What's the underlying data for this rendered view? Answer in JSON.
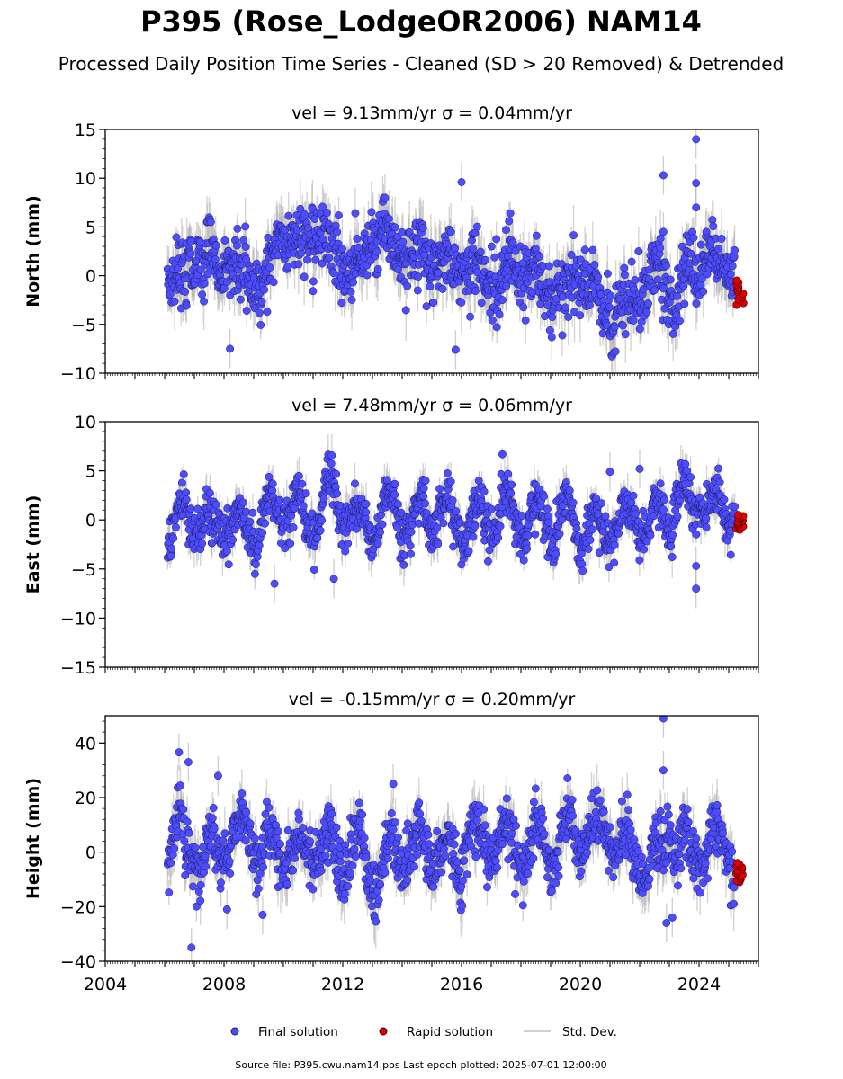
{
  "header": {
    "title": "P395 (Rose_LodgeOR2006) NAM14",
    "subtitle": "Processed Daily Position Time Series - Cleaned (SD > 20 Removed) & Detrended"
  },
  "legend": {
    "final_label": "Final solution",
    "rapid_label": "Rapid solution",
    "std_label": "Std. Dev."
  },
  "footer": {
    "source": "Source file: P395.cwu.nam14.pos  Last epoch plotted: 2025-07-01 12:00:00"
  },
  "colors": {
    "final": "#4d4dff",
    "final_edge": "#1a1a55",
    "rapid": "#e00000",
    "std": "#b0b0b0"
  },
  "chart_data": [
    {
      "type": "scatter",
      "title": "vel = 9.13mm/yr   σ = 0.04mm/yr",
      "ylabel": "North (mm)",
      "xlim": [
        2004.0,
        2026.0
      ],
      "ylim": [
        -10,
        15
      ],
      "yticks": [
        -10,
        -5,
        0,
        5,
        10,
        15
      ],
      "xticks": [
        2004,
        2008,
        2012,
        2016,
        2020,
        2024
      ],
      "series": [
        {
          "name": "Final solution",
          "x_range": [
            2006.1,
            2025.2
          ],
          "amplitude": 1.6,
          "seasonal": 0.8
        },
        {
          "name": "Rapid solution",
          "x_range": [
            2025.25,
            2025.5
          ],
          "y_range": [
            -3,
            -0.5
          ]
        }
      ],
      "outliers": [
        {
          "x": 2016.0,
          "y": 9.6
        },
        {
          "x": 2022.8,
          "y": 10.3
        },
        {
          "x": 2023.9,
          "y": 14.0
        },
        {
          "x": 2023.9,
          "y": 9.5
        },
        {
          "x": 2023.9,
          "y": 7.0
        },
        {
          "x": 2022.8,
          "y": 4.5
        },
        {
          "x": 2017.5,
          "y": 4.7
        },
        {
          "x": 2008.2,
          "y": -7.5
        },
        {
          "x": 2015.8,
          "y": -7.6
        }
      ]
    },
    {
      "type": "scatter",
      "title": "vel = 7.48mm/yr   σ = 0.06mm/yr",
      "ylabel": "East (mm)",
      "xlim": [
        2004.0,
        2026.0
      ],
      "ylim": [
        -15,
        10
      ],
      "yticks": [
        -15,
        -10,
        -5,
        0,
        5,
        10
      ],
      "xticks": [
        2004,
        2008,
        2012,
        2016,
        2020,
        2024
      ],
      "series": [
        {
          "name": "Final solution",
          "x_range": [
            2006.1,
            2025.2
          ],
          "amplitude": 1.1,
          "seasonal": 2.0
        },
        {
          "name": "Rapid solution",
          "x_range": [
            2025.25,
            2025.5
          ],
          "y_range": [
            -1,
            0.5
          ]
        }
      ],
      "outliers": [
        {
          "x": 2009.7,
          "y": -6.5
        },
        {
          "x": 2011.7,
          "y": -6.0
        },
        {
          "x": 2023.9,
          "y": -4.7
        },
        {
          "x": 2023.9,
          "y": -7.0
        },
        {
          "x": 2022.0,
          "y": 5.2
        },
        {
          "x": 2021.0,
          "y": 4.9
        }
      ]
    },
    {
      "type": "scatter",
      "title": "vel = -0.15mm/yr   σ = 0.20mm/yr",
      "ylabel": "Height (mm)",
      "xlim": [
        2004.0,
        2026.0
      ],
      "ylim": [
        -40,
        50
      ],
      "yticks": [
        -40,
        -20,
        0,
        20,
        40
      ],
      "xticks": [
        2004,
        2008,
        2012,
        2016,
        2020,
        2024
      ],
      "series": [
        {
          "name": "Final solution",
          "x_range": [
            2006.1,
            2025.2
          ],
          "amplitude": 5.0,
          "seasonal": 7.0
        },
        {
          "name": "Rapid solution",
          "x_range": [
            2025.25,
            2025.5
          ],
          "y_range": [
            -11,
            -4
          ]
        }
      ],
      "outliers": [
        {
          "x": 2006.8,
          "y": 33.0
        },
        {
          "x": 2007.8,
          "y": 28.0
        },
        {
          "x": 2006.9,
          "y": -35.0
        },
        {
          "x": 2022.8,
          "y": 49.0
        },
        {
          "x": 2022.8,
          "y": 30.0
        },
        {
          "x": 2022.9,
          "y": -26.0
        },
        {
          "x": 2023.1,
          "y": -24.0
        },
        {
          "x": 2013.7,
          "y": 25.0
        },
        {
          "x": 2009.3,
          "y": -23.0
        },
        {
          "x": 2008.1,
          "y": -21.0
        }
      ]
    }
  ]
}
